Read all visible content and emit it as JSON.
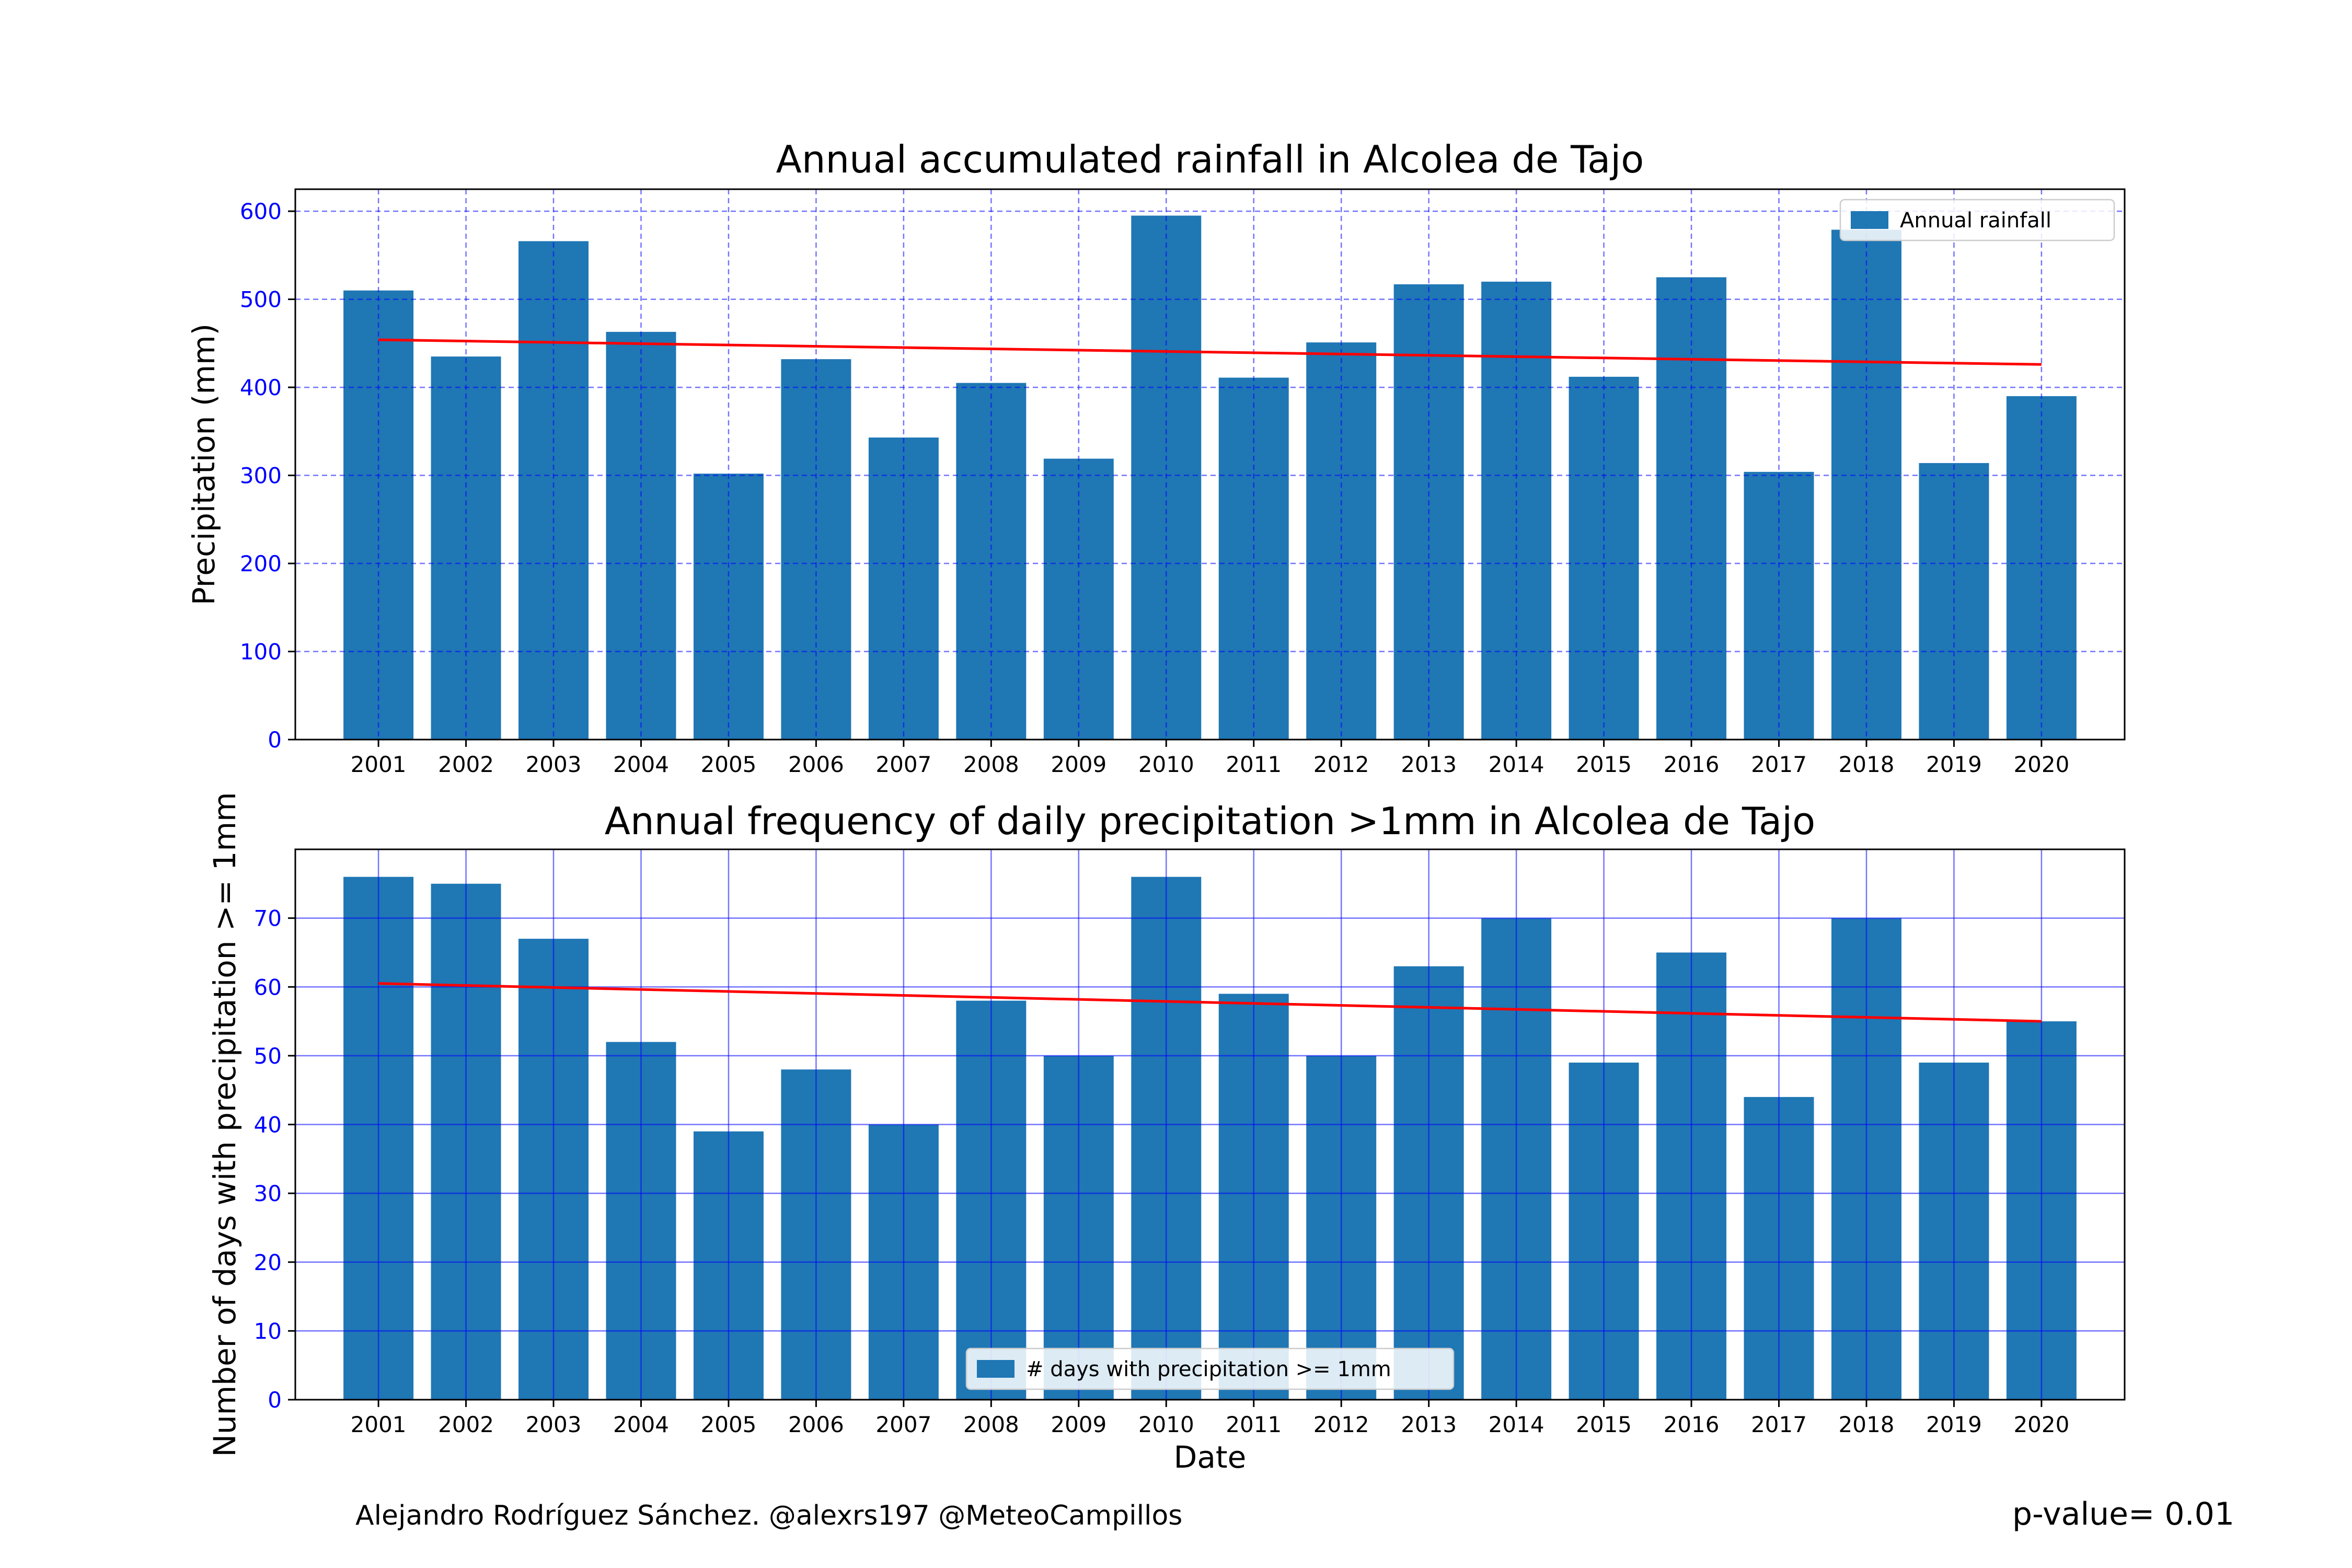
{
  "chart_data": [
    {
      "type": "bar",
      "title": "Annual accumulated rainfall in Alcolea de Tajo",
      "xlabel": "",
      "ylabel": "Precipitation (mm)",
      "categories": [
        "2001",
        "2002",
        "2003",
        "2004",
        "2005",
        "2006",
        "2007",
        "2008",
        "2009",
        "2010",
        "2011",
        "2012",
        "2013",
        "2014",
        "2015",
        "2016",
        "2017",
        "2018",
        "2019",
        "2020"
      ],
      "values": [
        510,
        435,
        566,
        463,
        302,
        432,
        343,
        405,
        319,
        595,
        411,
        451,
        517,
        520,
        412,
        525,
        304,
        579,
        314,
        390
      ],
      "ylim": [
        0,
        625
      ],
      "yticks": [
        0,
        100,
        200,
        300,
        400,
        500,
        600
      ],
      "trend": {
        "start": 454,
        "end": 426
      },
      "grid": {
        "style": "dashed",
        "color": "#0000ff"
      },
      "legend": {
        "label": "Annual rainfall",
        "placement": "top-right"
      },
      "bar_color": "#1f77b4",
      "trend_color": "#ff0000",
      "tick_label_color": "#0000ff"
    },
    {
      "type": "bar",
      "title": "Annual frequency of daily precipitation >1mm in Alcolea de Tajo",
      "xlabel": "Date",
      "ylabel": "Number of days with precipitation >= 1mm",
      "categories": [
        "2001",
        "2002",
        "2003",
        "2004",
        "2005",
        "2006",
        "2007",
        "2008",
        "2009",
        "2010",
        "2011",
        "2012",
        "2013",
        "2014",
        "2015",
        "2016",
        "2017",
        "2018",
        "2019",
        "2020"
      ],
      "values": [
        76,
        75,
        67,
        52,
        39,
        48,
        40,
        58,
        50,
        76,
        59,
        50,
        63,
        70,
        49,
        65,
        44,
        70,
        49,
        55
      ],
      "ylim": [
        0,
        80
      ],
      "yticks": [
        0,
        10,
        20,
        30,
        40,
        50,
        60,
        70
      ],
      "trend": {
        "start": 60.5,
        "end": 55
      },
      "grid": {
        "style": "solid",
        "color": "#0000ff"
      },
      "legend": {
        "label": "# days with precipitation >= 1mm",
        "placement": "bottom-center"
      },
      "bar_color": "#1f77b4",
      "trend_color": "#ff0000",
      "tick_label_color": "#0000ff"
    }
  ],
  "footer": {
    "credit": "Alejandro Rodríguez Sánchez. @alexrs197 @MeteoCampillos",
    "pvalue": "p-value= 0.01"
  }
}
